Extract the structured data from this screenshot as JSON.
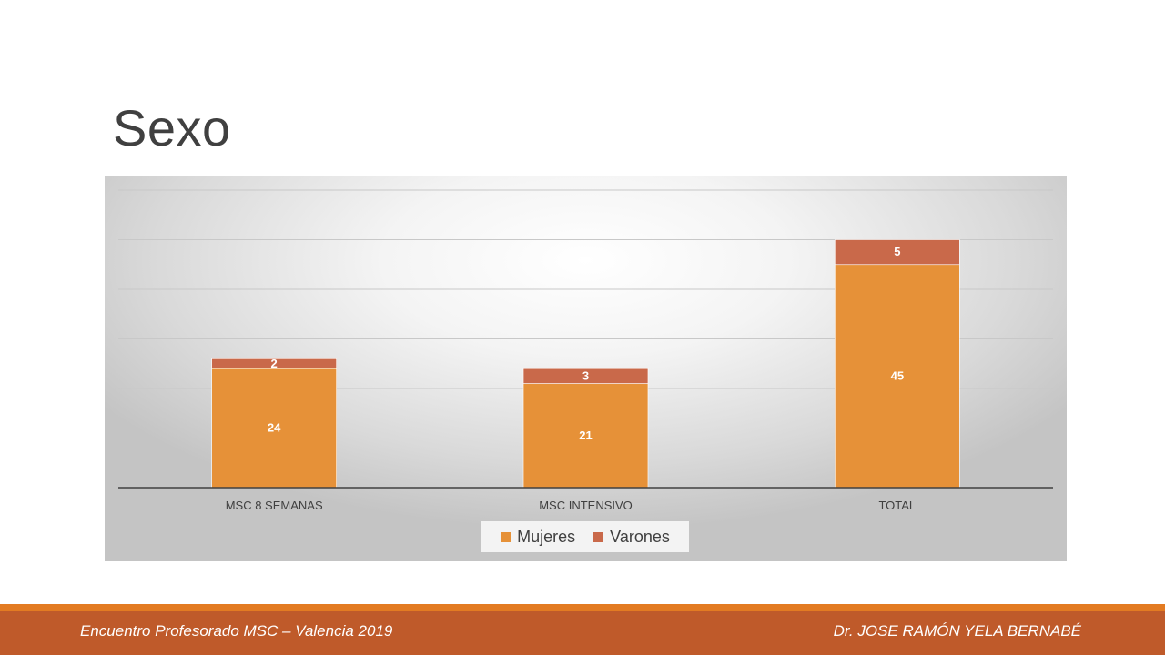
{
  "slide": {
    "title": "Sexo",
    "footer_left": "Encuentro Profesorado MSC – Valencia 2019",
    "footer_right": "Dr. JOSE RAMÓN YELA BERNABÉ"
  },
  "colors": {
    "mujeres": "#e69138",
    "varones": "#c9694a",
    "footer": "#bf5a2a",
    "footer_accent": "#e37b22"
  },
  "chart_data": {
    "type": "bar",
    "stacked": true,
    "categories": [
      "MSC 8 SEMANAS",
      "MSC INTENSIVO",
      "TOTAL"
    ],
    "series": [
      {
        "name": "Mujeres",
        "values": [
          24,
          21,
          45
        ]
      },
      {
        "name": "Varones",
        "values": [
          2,
          3,
          5
        ]
      }
    ],
    "ylim": [
      0,
      60
    ],
    "grid": true,
    "legend_position": "bottom"
  }
}
